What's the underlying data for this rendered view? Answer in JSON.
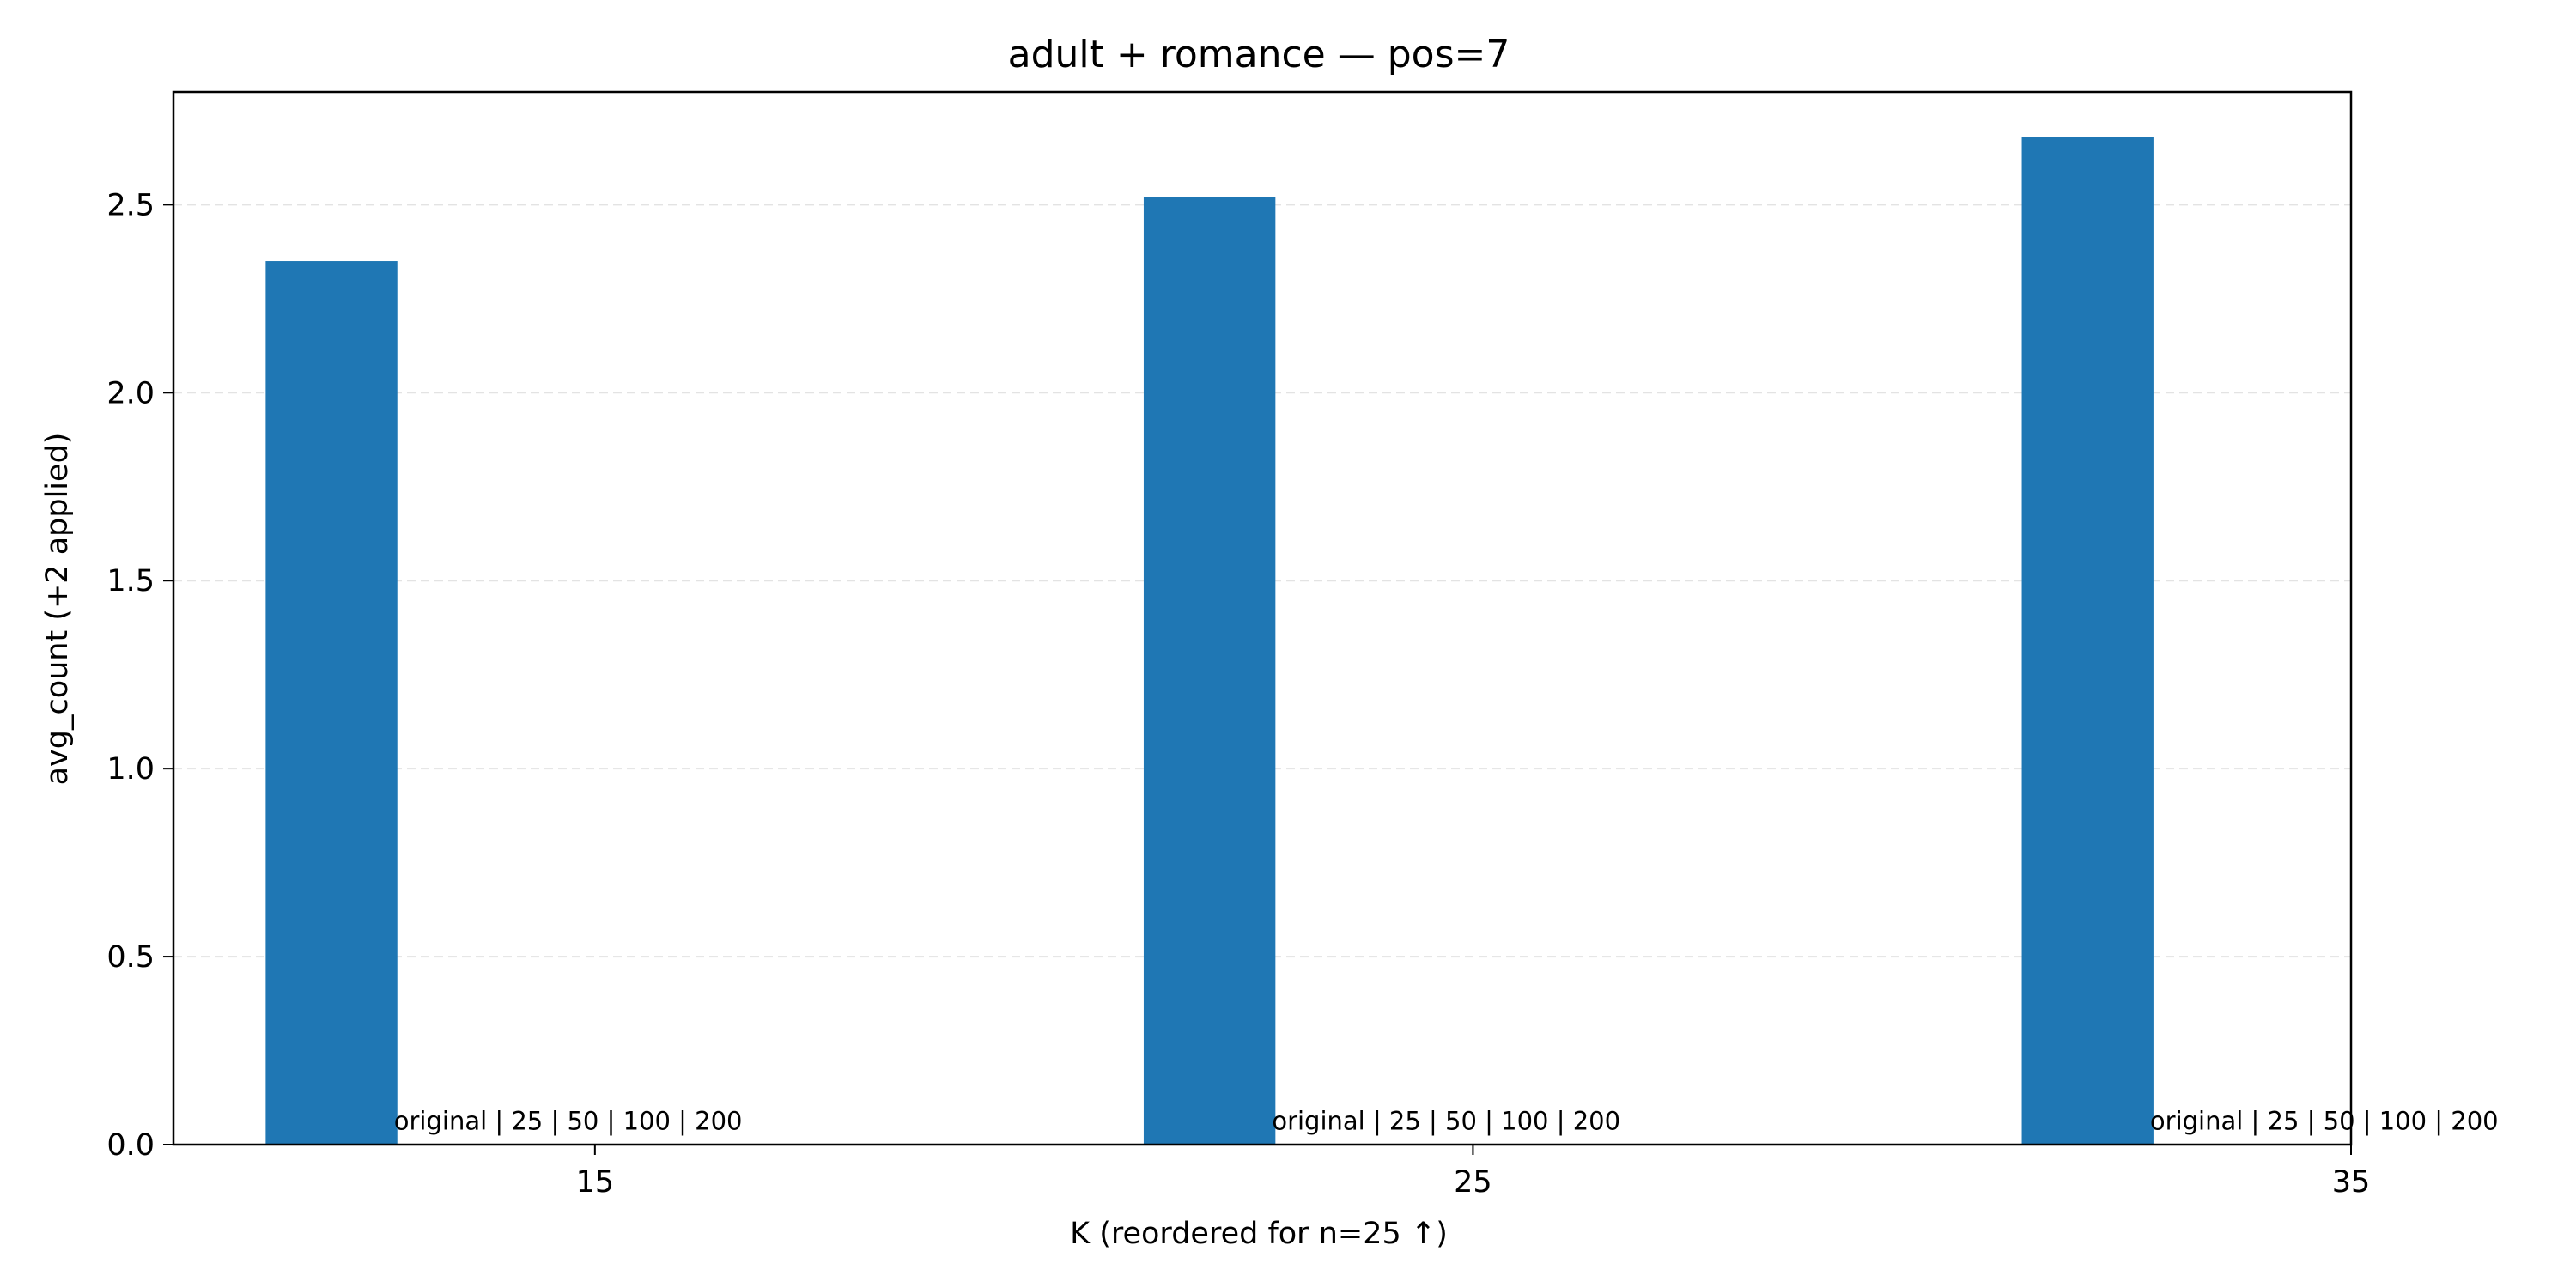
{
  "chart_data": {
    "type": "bar",
    "title": "adult + romance — pos=7",
    "xlabel": "K (reordered for n=25 ↑)",
    "ylabel": "avg_count (+2 applied)",
    "x": [
      15,
      25,
      35
    ],
    "x_tick_labels": [
      "15",
      "25",
      "35"
    ],
    "xlim": [
      10.2,
      35
    ],
    "ylim": [
      0,
      2.8
    ],
    "y_ticks": [
      0,
      0.5,
      1.0,
      1.5,
      2.0,
      2.5
    ],
    "y_tick_labels": [
      "0.0",
      "0.5",
      "1.0",
      "1.5",
      "2.0",
      "2.5"
    ],
    "series": [
      {
        "values": [
          2.35,
          2.52,
          2.68
        ],
        "color": "#1f77b4"
      }
    ],
    "bar_x_offset": -3,
    "bar_width": 1.5,
    "annotations": [
      "original | 25 | 50 | 100 | 200",
      "original | 25 | 50 | 100 | 200",
      "original | 25 | 50 | 100 | 200"
    ],
    "grid": "y-dashed",
    "legend": "none"
  }
}
